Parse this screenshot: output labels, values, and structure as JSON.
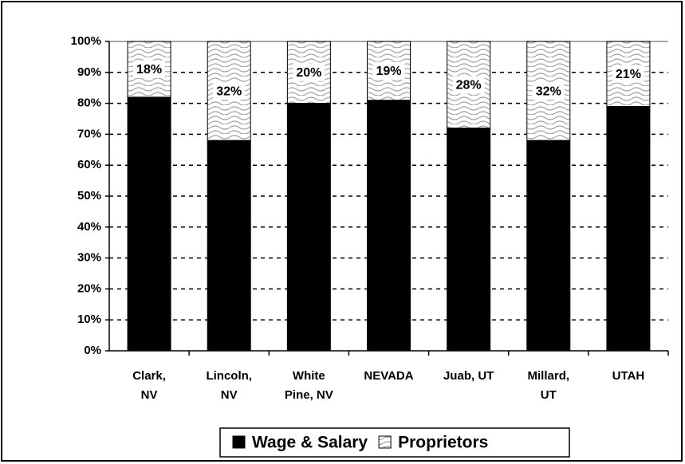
{
  "chart_data": {
    "type": "stacked-bar",
    "categories": [
      "Clark, NV",
      "Lincoln, NV",
      "White Pine, NV",
      "NEVADA",
      "Juab, UT",
      "Millard, UT",
      "UTAH"
    ],
    "series": [
      {
        "name": "Wage & Salary",
        "color": "#000000",
        "values": [
          82,
          68,
          80,
          81,
          72,
          68,
          79
        ]
      },
      {
        "name": "Proprietors",
        "color": "#a0a0a0",
        "pattern": "wave",
        "values": [
          18,
          32,
          20,
          19,
          28,
          32,
          21
        ],
        "value_labels": [
          "18%",
          "32%",
          "20%",
          "19%",
          "28%",
          "32%",
          "21%"
        ]
      }
    ],
    "ylim": [
      0,
      100
    ],
    "yticks": [
      {
        "value": 0,
        "label": "0%"
      },
      {
        "value": 10,
        "label": "10%"
      },
      {
        "value": 20,
        "label": "20%"
      },
      {
        "value": 30,
        "label": "30%"
      },
      {
        "value": 40,
        "label": "40%"
      },
      {
        "value": 50,
        "label": "50%"
      },
      {
        "value": 60,
        "label": "60%"
      },
      {
        "value": 70,
        "label": "70%"
      },
      {
        "value": 80,
        "label": "80%"
      },
      {
        "value": 90,
        "label": "90%"
      },
      {
        "value": 100,
        "label": "100%"
      }
    ],
    "grid": true,
    "legend": "bottom"
  }
}
